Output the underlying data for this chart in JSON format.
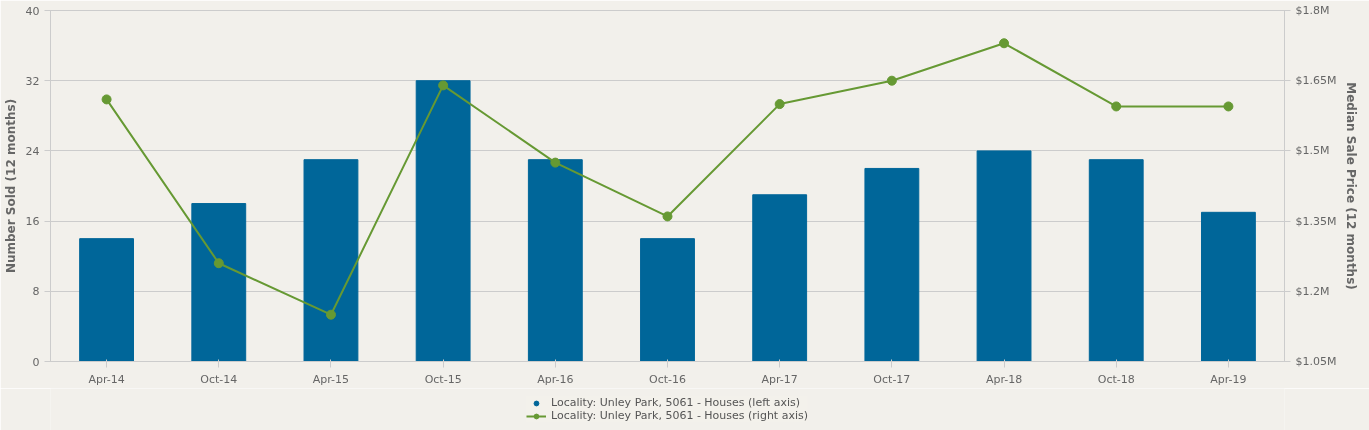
{
  "chart_data": {
    "type": "bar",
    "categories": [
      "Apr-14",
      "Oct-14",
      "Apr-15",
      "Oct-15",
      "Apr-16",
      "Oct-16",
      "Apr-17",
      "Oct-17",
      "Apr-18",
      "Oct-18",
      "Apr-19"
    ],
    "series": [
      {
        "name": "Locality: Unley Park, 5061 - Houses (left axis)",
        "color": "#006699",
        "values": [
          14,
          18,
          23,
          32,
          23,
          14,
          19,
          22,
          24,
          23,
          17
        ]
      },
      {
        "name": "Locality: Unley Park, 5061 - Houses (right axis)",
        "type": "line",
        "axis": "y2",
        "color": "#669933",
        "marker": "circle",
        "values": [
          1.61,
          1.26,
          1.15,
          1.64,
          1.475,
          1.36,
          1.6,
          1.65,
          1.73,
          1.595,
          1.595
        ]
      }
    ],
    "ylabel": "Number Sold (12 months)",
    "y2label": "Median Sale Price (12 months)",
    "ylim": [
      0,
      40
    ],
    "yticks": [
      0,
      8,
      16,
      24,
      32,
      40
    ],
    "y2lim": [
      1.05,
      1.8
    ],
    "y2ticks": [
      {
        "value": 1.05,
        "label": "$1.05M"
      },
      {
        "value": 1.2,
        "label": "$1.2M"
      },
      {
        "value": 1.35,
        "label": "$1.35M"
      },
      {
        "value": 1.5,
        "label": "$1.5M"
      },
      {
        "value": 1.65,
        "label": "$1.65M"
      },
      {
        "value": 1.8,
        "label": "$1.8M"
      }
    ],
    "grid": "y",
    "legend": "bottom"
  }
}
